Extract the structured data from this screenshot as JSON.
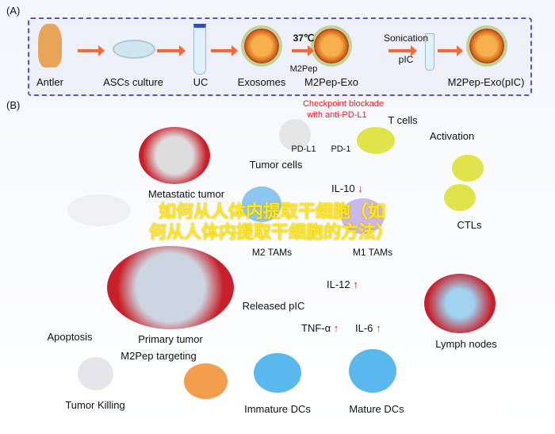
{
  "panel_a": {
    "label": "(A)",
    "steps": [
      "Antler",
      "ASCs culture",
      "UC",
      "Exosomes",
      "M2Pep-Exo",
      "M2Pep-Exo(pIC)"
    ],
    "temp": "37℃",
    "peptide": "M2Pep",
    "sonication": "Sonication",
    "pic": "pIC"
  },
  "panel_b": {
    "label": "(B)",
    "checkpoint_line1": "Checkpoint blockade",
    "checkpoint_line2": "with anti-PD-L1",
    "t_cells": "T cells",
    "pd_l1": "PD-L1",
    "pd_1": "PD-1",
    "tumor_cells": "Tumor cells",
    "metastatic_tumor": "Metastatic tumor",
    "il10": "IL-10",
    "activation": "Activation",
    "ctls": "CTLs",
    "m2_tams": "M2 TAMs",
    "m1_tams": "M1 TAMs",
    "released_pic": "Released pIC",
    "il12": "IL-12",
    "tnf": "TNF-α",
    "il6": "IL-6",
    "primary_tumor": "Primary tumor",
    "m2pep_targeting": "M2Pep targeting",
    "apoptosis": "Apoptosis",
    "tumor_killing": "Tumor Killing",
    "immature_dcs": "Immature DCs",
    "mature_dcs": "Mature DCs",
    "lymph_nodes": "Lymph nodes",
    "up": "↑",
    "down": "↓"
  },
  "watermark": {
    "line1": "如何从人体内提取干细胞（如",
    "line2": "何从人体内提取干细胞的方法）"
  },
  "colors": {
    "arrow": "#f26a3a",
    "box_border": "#5a4fd8",
    "checkpoint_text": "#e0202a",
    "watermark": "#ffe81a"
  }
}
